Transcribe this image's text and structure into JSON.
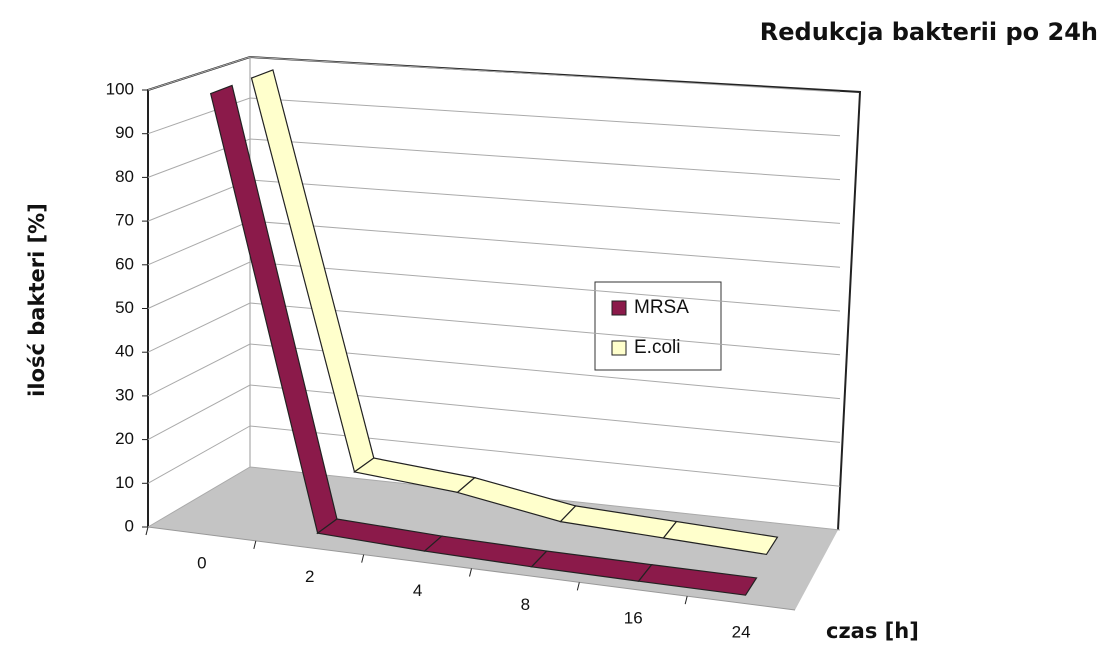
{
  "chart_data": {
    "type": "line3d",
    "title": "Redukcja bakterii po 24h",
    "ylabel": "ilość bakteri  [%]",
    "xlabel": "czas [h]",
    "categories": [
      "0",
      "2",
      "4",
      "8",
      "16",
      "24"
    ],
    "series": [
      {
        "name": "MRSA",
        "color": "#8b1a4a",
        "values": [
          100,
          2,
          1,
          0.5,
          0.3,
          0.2
        ]
      },
      {
        "name": "E.coli",
        "color": "#ffffcc",
        "values": [
          100,
          10,
          8,
          4,
          3,
          2
        ]
      }
    ],
    "ylim": [
      0,
      100
    ],
    "yticks": [
      0,
      10,
      20,
      30,
      40,
      50,
      60,
      70,
      80,
      90,
      100
    ],
    "grid": true
  }
}
